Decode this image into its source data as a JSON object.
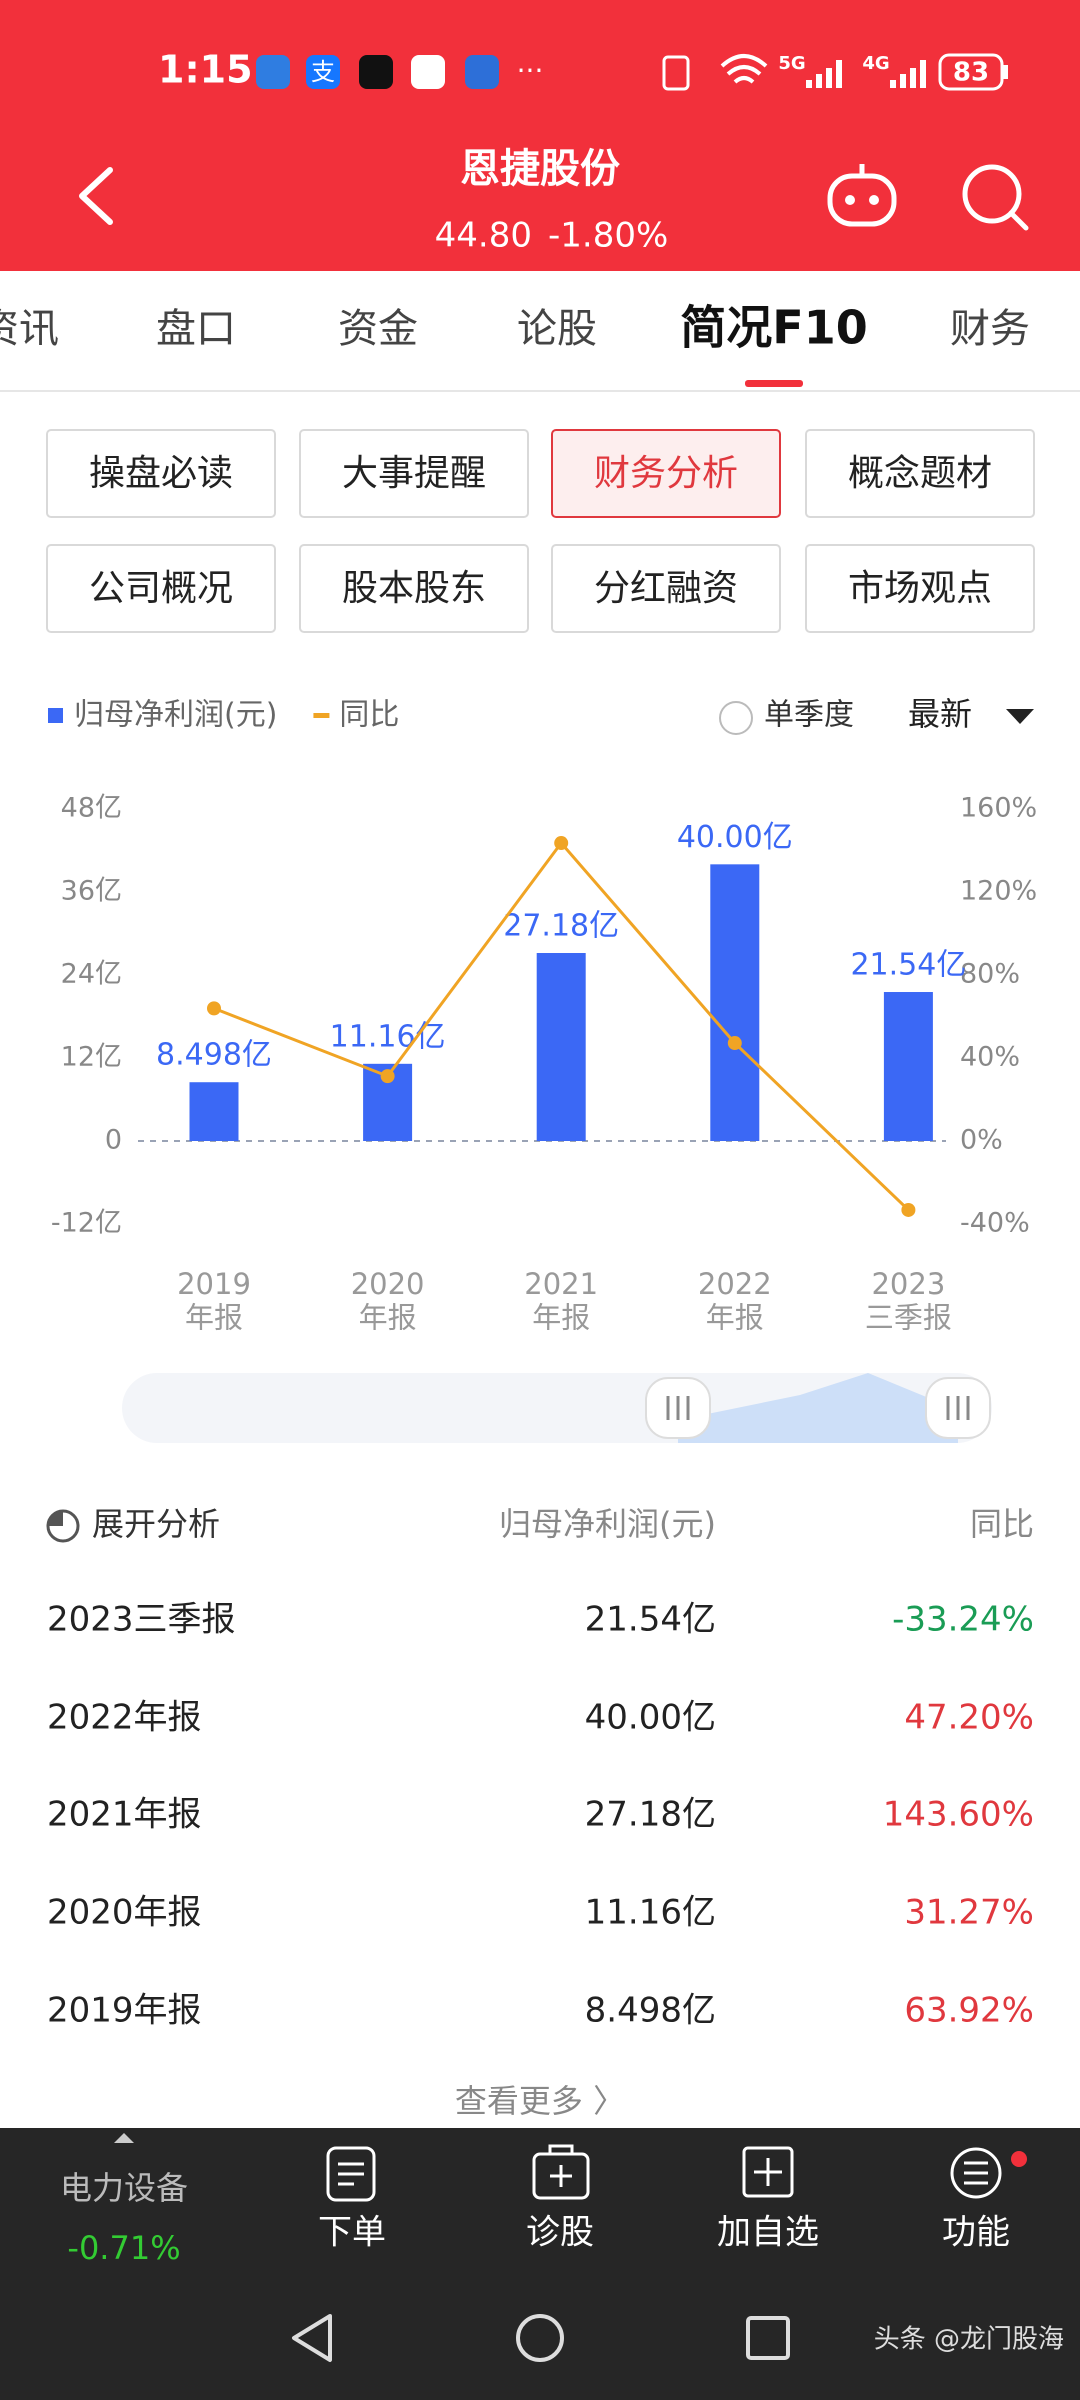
{
  "status_bar": {
    "time": "1:15",
    "app_icon": "支",
    "more": "···",
    "net1": "5G",
    "net2": "4G",
    "battery": "83"
  },
  "header": {
    "title": "恩捷股份",
    "price": "44.80",
    "change": "-1.80%"
  },
  "tabs": [
    "资讯",
    "盘口",
    "资金",
    "论股",
    "简况F10",
    "财务"
  ],
  "buttons": [
    "操盘必读",
    "大事提醒",
    "财务分析",
    "概念题材",
    "公司概况",
    "股本股东",
    "分红融资",
    "市场观点"
  ],
  "controls": {
    "single_quarter": "单季度",
    "period": "最新"
  },
  "chart_data": {
    "type": "bar",
    "categories": [
      "2019\n年报",
      "2020\n年报",
      "2021\n年报",
      "2022\n年报",
      "2023\n三季报"
    ],
    "series": [
      {
        "name": "归母净利润(元)",
        "color": "#3b68f5",
        "values": [
          8.498,
          11.16,
          27.18,
          40.0,
          21.54
        ],
        "value_labels": [
          "8.498亿",
          "11.16亿",
          "27.18亿",
          "40.00亿",
          "21.54亿"
        ]
      },
      {
        "name": "同比",
        "color": "#f0a424",
        "type": "line",
        "axis": "y2",
        "values": [
          63.92,
          31.27,
          143.6,
          47.2,
          -33.24
        ]
      }
    ],
    "ylim": [
      -12,
      48
    ],
    "yticks": [
      {
        "value": -12,
        "label": "-12亿"
      },
      0,
      {
        "value": 12,
        "label": "12亿"
      },
      {
        "value": 24,
        "label": "24亿"
      },
      {
        "value": 36,
        "label": "36亿"
      },
      {
        "value": 48,
        "label": "48亿"
      }
    ],
    "y2lim": [
      -40,
      160
    ],
    "y2ticks": [
      {
        "value": -40,
        "label": "-40%"
      },
      {
        "value": 0,
        "label": "0%"
      },
      {
        "value": 40,
        "label": "40%"
      },
      {
        "value": 80,
        "label": "80%"
      },
      {
        "value": 120,
        "label": "120%"
      },
      {
        "value": 160,
        "label": "160%"
      }
    ],
    "grid": false
  },
  "table": {
    "header": [
      "展开分析",
      "归母净利润(元)",
      "同比"
    ],
    "rows": [
      {
        "cells": [
          "2023三季报",
          "21.54亿",
          "-33.24%"
        ],
        "change_color": "#1a9c55"
      },
      {
        "cells": [
          "2022年报",
          "40.00亿",
          "47.20%"
        ],
        "change_color": "#e0383e"
      },
      {
        "cells": [
          "2021年报",
          "27.18亿",
          "143.60%"
        ],
        "change_color": "#e0383e"
      },
      {
        "cells": [
          "2020年报",
          "11.16亿",
          "31.27%"
        ],
        "change_color": "#e0383e"
      },
      {
        "cells": [
          "2019年报",
          "8.498亿",
          "63.92%"
        ],
        "change_color": "#e0383e"
      }
    ],
    "more": "查看更多 〉"
  },
  "bottom_bar": {
    "sector": "电力设备",
    "sector_change": "-0.71%",
    "items": [
      "下单",
      "诊股",
      "加自选",
      "功能"
    ]
  },
  "watermark": "头条 @龙门股海"
}
